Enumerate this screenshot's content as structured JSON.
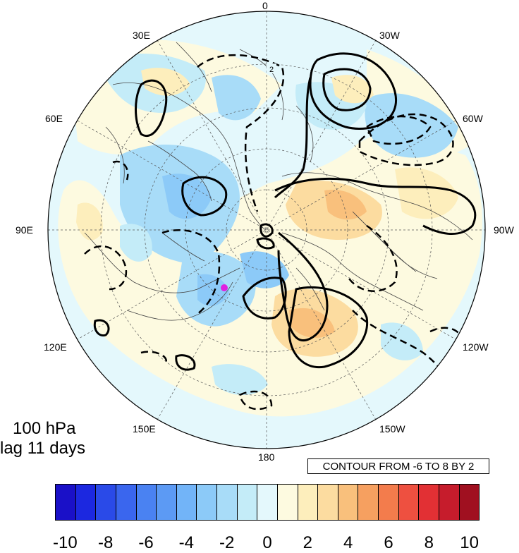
{
  "map": {
    "projection": "north-polar-stereographic",
    "longitude_labels": [
      "0",
      "30W",
      "60W",
      "90W",
      "120W",
      "150W",
      "180",
      "150E",
      "120E",
      "90E",
      "60E",
      "30E"
    ],
    "contour_note": "CONTOUR FROM -6 TO 8 BY 2",
    "contour_label_value": "2",
    "contour_style": {
      "positive": "solid",
      "negative": "dashed",
      "color": "#000000"
    },
    "highlight_point": {
      "color": "#e020e0"
    }
  },
  "annotation": {
    "level": "100 hPa",
    "lag": "lag 11 days"
  },
  "colorbar": {
    "ticks": [
      "-10",
      "-8",
      "-6",
      "-4",
      "-2",
      "0",
      "2",
      "4",
      "6",
      "8",
      "10"
    ],
    "colors": [
      "#1a10c8",
      "#1c28e0",
      "#2a4ae8",
      "#3a66ee",
      "#4a82f2",
      "#5c9af4",
      "#72b4f8",
      "#8ccaf8",
      "#a8dcf8",
      "#c4ecf8",
      "#e4f8fc",
      "#fdfae0",
      "#fdeebc",
      "#fcdca0",
      "#f9c07c",
      "#f6a060",
      "#f37c4c",
      "#ee5040",
      "#e23034",
      "#c61c2c",
      "#a01020"
    ]
  }
}
